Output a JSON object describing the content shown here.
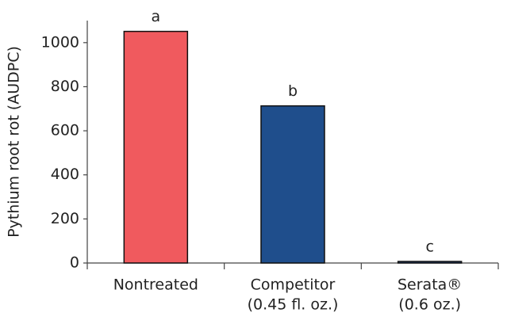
{
  "chart_data": {
    "type": "bar",
    "y_label": "Pythium root rot (AUDPC)",
    "categories": [
      [
        "Nontreated"
      ],
      [
        "Competitor",
        "(0.45 fl. oz.)"
      ],
      [
        "Serata®",
        "(0.6 oz.)"
      ]
    ],
    "values": [
      1051,
      713,
      7
    ],
    "colors": [
      "#f05a5e",
      "#1f4e8c",
      "#1f4e8c"
    ],
    "annotations": [
      "a",
      "b",
      "c"
    ],
    "ylim": [
      0,
      1100
    ],
    "yticks": [
      0,
      200,
      400,
      600,
      800,
      1000
    ],
    "grid": false
  }
}
